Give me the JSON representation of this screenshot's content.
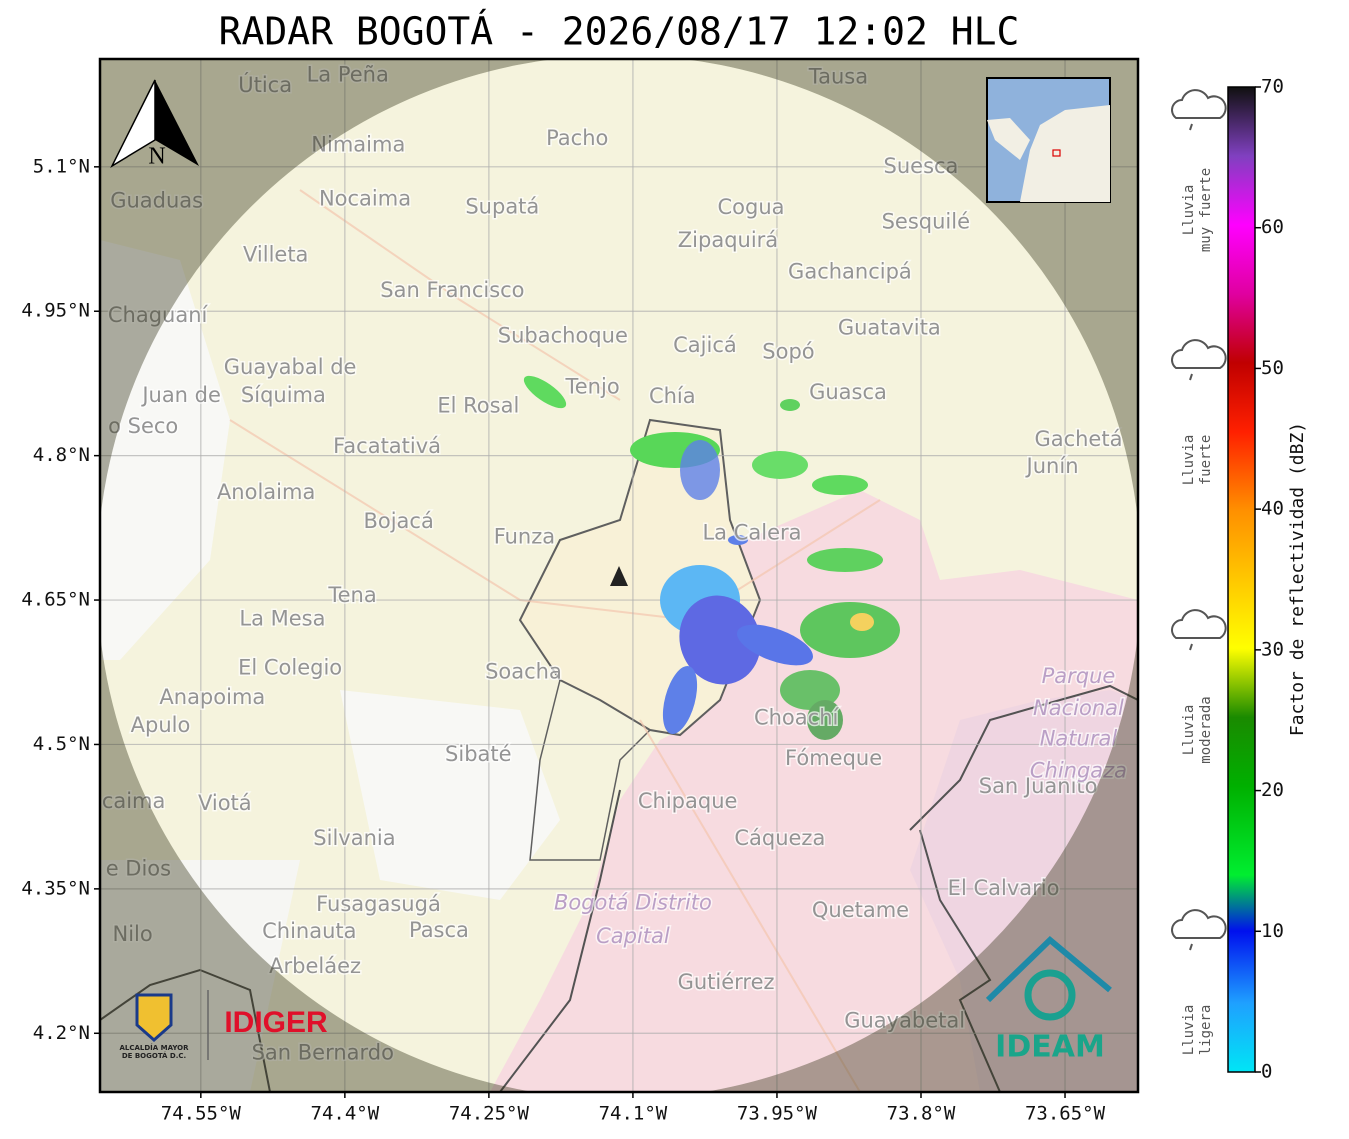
{
  "chart_data": {
    "type": "map",
    "title": "RADAR BOGOTÁ - 2026/08/17 12:02 HLC",
    "xlim": [
      -74.655,
      -73.574
    ],
    "ylim": [
      4.139,
      5.212
    ],
    "xticks": [
      {
        "value": -74.55,
        "label": "74.55°W"
      },
      {
        "value": -74.4,
        "label": "74.4°W"
      },
      {
        "value": -74.25,
        "label": "74.25°W"
      },
      {
        "value": -74.1,
        "label": "74.1°W"
      },
      {
        "value": -73.95,
        "label": "73.95°W"
      },
      {
        "value": -73.8,
        "label": "73.8°W"
      },
      {
        "value": -73.65,
        "label": "73.65°W"
      }
    ],
    "yticks": [
      {
        "value": 5.1,
        "label": "5.1°N"
      },
      {
        "value": 4.95,
        "label": "4.95°N"
      },
      {
        "value": 4.8,
        "label": "4.8°N"
      },
      {
        "value": 4.65,
        "label": "4.65°N"
      },
      {
        "value": 4.5,
        "label": "4.5°N"
      },
      {
        "value": 4.35,
        "label": "4.35°N"
      },
      {
        "value": 4.2,
        "label": "4.2°N"
      }
    ],
    "grid": true,
    "places": [
      {
        "name": "La Peña",
        "lon": -74.397,
        "lat": 5.195
      },
      {
        "name": "Útica",
        "lon": -74.483,
        "lat": 5.184
      },
      {
        "name": "Tausa",
        "lon": -73.886,
        "lat": 5.193
      },
      {
        "name": "Nimaima",
        "lon": -74.386,
        "lat": 5.122
      },
      {
        "name": "Pacho",
        "lon": -74.158,
        "lat": 5.129
      },
      {
        "name": "Guaduas",
        "lon": -74.596,
        "lat": 5.064
      },
      {
        "name": "Nocaima",
        "lon": -74.379,
        "lat": 5.066
      },
      {
        "name": "Supatá",
        "lon": -74.236,
        "lat": 5.058
      },
      {
        "name": "Cogua",
        "lon": -73.977,
        "lat": 5.057
      },
      {
        "name": "Suesca",
        "lon": -73.8,
        "lat": 5.1
      },
      {
        "name": "Sesquilé",
        "lon": -73.795,
        "lat": 5.042
      },
      {
        "name": "Zipaquirá",
        "lon": -74.001,
        "lat": 5.023
      },
      {
        "name": "Villeta",
        "lon": -74.472,
        "lat": 5.008
      },
      {
        "name": "Gachancipá",
        "lon": -73.874,
        "lat": 4.99
      },
      {
        "name": "San Francisco",
        "lon": -74.288,
        "lat": 4.971
      },
      {
        "name": "Chaguaní",
        "lon": -74.595,
        "lat": 4.945
      },
      {
        "name": "Guatavita",
        "lon": -73.833,
        "lat": 4.932
      },
      {
        "name": "Subachoque",
        "lon": -74.173,
        "lat": 4.924
      },
      {
        "name": "Cajicá",
        "lon": -74.025,
        "lat": 4.914
      },
      {
        "name": "Sopó",
        "lon": -73.938,
        "lat": 4.907
      },
      {
        "name": "Guayabal de",
        "lon": -74.457,
        "lat": 4.891
      },
      {
        "name": "Síquima",
        "lon": -74.464,
        "lat": 4.862
      },
      {
        "name": "Juan de",
        "lon": -74.57,
        "lat": 4.862
      },
      {
        "name": "o Seco",
        "lon": -74.61,
        "lat": 4.83
      },
      {
        "name": "Tenjo",
        "lon": -74.142,
        "lat": 4.871
      },
      {
        "name": "Chía",
        "lon": -74.059,
        "lat": 4.861
      },
      {
        "name": "Guasca",
        "lon": -73.876,
        "lat": 4.865
      },
      {
        "name": "El Rosal",
        "lon": -74.261,
        "lat": 4.851
      },
      {
        "name": "Facatativá",
        "lon": -74.356,
        "lat": 4.809
      },
      {
        "name": "Gachetá",
        "lon": -73.636,
        "lat": 4.816
      },
      {
        "name": "Junín",
        "lon": -73.663,
        "lat": 4.788
      },
      {
        "name": "Anolaima",
        "lon": -74.482,
        "lat": 4.761
      },
      {
        "name": "Bojacá",
        "lon": -74.344,
        "lat": 4.731
      },
      {
        "name": "Funza",
        "lon": -74.213,
        "lat": 4.715
      },
      {
        "name": "La Calera",
        "lon": -73.976,
        "lat": 4.719
      },
      {
        "name": "Tena",
        "lon": -74.392,
        "lat": 4.654
      },
      {
        "name": "La Mesa",
        "lon": -74.465,
        "lat": 4.63
      },
      {
        "name": "El Colegio",
        "lon": -74.457,
        "lat": 4.579
      },
      {
        "name": "Soacha",
        "lon": -74.214,
        "lat": 4.575
      },
      {
        "name": "Anapoima",
        "lon": -74.538,
        "lat": 4.548
      },
      {
        "name": "Apulo",
        "lon": -74.592,
        "lat": 4.519
      },
      {
        "name": "Choachí",
        "lon": -73.93,
        "lat": 4.527
      },
      {
        "name": "Fómeque",
        "lon": -73.891,
        "lat": 4.485
      },
      {
        "name": "San Juanito",
        "lon": -73.678,
        "lat": 4.456
      },
      {
        "name": "Sibaté",
        "lon": -74.261,
        "lat": 4.489
      },
      {
        "name": "caima",
        "lon": -74.62,
        "lat": 4.44
      },
      {
        "name": "Viotá",
        "lon": -74.525,
        "lat": 4.438
      },
      {
        "name": "Chipaque",
        "lon": -74.043,
        "lat": 4.44
      },
      {
        "name": "Silvania",
        "lon": -74.39,
        "lat": 4.402
      },
      {
        "name": "Cáqueza",
        "lon": -73.947,
        "lat": 4.402
      },
      {
        "name": "e Dios",
        "lon": -74.615,
        "lat": 4.37
      },
      {
        "name": "El Calvario",
        "lon": -73.714,
        "lat": 4.35
      },
      {
        "name": "Fusagasugá",
        "lon": -74.365,
        "lat": 4.333
      },
      {
        "name": "Quetame",
        "lon": -73.863,
        "lat": 4.327
      },
      {
        "name": "Nilo",
        "lon": -74.621,
        "lat": 4.302
      },
      {
        "name": "Chinauta",
        "lon": -74.437,
        "lat": 4.305
      },
      {
        "name": "Pasca",
        "lon": -74.302,
        "lat": 4.306
      },
      {
        "name": "Arbeláez",
        "lon": -74.431,
        "lat": 4.269
      },
      {
        "name": "Gutiérrez",
        "lon": -74.003,
        "lat": 4.252
      },
      {
        "name": "Guayabetal",
        "lon": -73.817,
        "lat": 4.212
      },
      {
        "name": "San Bernardo",
        "lon": -74.423,
        "lat": 4.179
      }
    ],
    "parks": [
      {
        "name": "Parque",
        "lon": -73.636,
        "lat": 4.57
      },
      {
        "name": "Nacional",
        "lon": -73.636,
        "lat": 4.537
      },
      {
        "name": "Natural",
        "lon": -73.636,
        "lat": 4.505
      },
      {
        "name": "Chingaza",
        "lon": -73.636,
        "lat": 4.472
      },
      {
        "name": "Bogotá Distrito",
        "lon": -74.1,
        "lat": 4.335
      },
      {
        "name": "Capital",
        "lon": -74.1,
        "lat": 4.3
      }
    ],
    "north": "N",
    "colorbar": {
      "label": "Factor de reflectividad (dBZ)",
      "lim": [
        0,
        70
      ],
      "ticks": [
        0,
        10,
        20,
        30,
        40,
        50,
        60,
        70
      ]
    },
    "rain_levels": [
      {
        "lines": [
          "Lluvia",
          "muy fuerte"
        ]
      },
      {
        "lines": [
          "Lluvia",
          "fuerte"
        ]
      },
      {
        "lines": [
          "Lluvia",
          "moderada"
        ]
      },
      {
        "lines": [
          "Lluvia",
          "ligera"
        ]
      }
    ],
    "logos": {
      "alcaldia": [
        "ALCALDÍA MAYOR",
        "DE BOGOTÁ D.C."
      ],
      "idiger": "IDIGER",
      "ideam": "IDEAM"
    }
  }
}
